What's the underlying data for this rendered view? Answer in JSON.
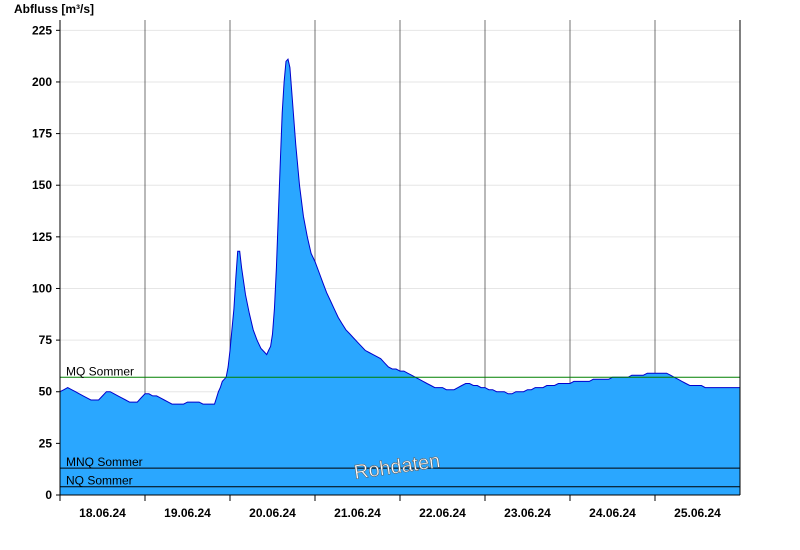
{
  "chart_data": {
    "type": "area",
    "ylabel": "Abfluss [m³/s]",
    "ylim": [
      0,
      230
    ],
    "yticks": [
      0,
      25,
      50,
      75,
      100,
      125,
      150,
      175,
      200,
      225
    ],
    "x_days": [
      "18.06.24",
      "19.06.24",
      "20.06.24",
      "21.06.24",
      "22.06.24",
      "23.06.24",
      "24.06.24",
      "25.06.24"
    ],
    "x_start": "17.06.24 21:00",
    "x_end": "25.06.24 21:00",
    "grid": true,
    "series": [
      {
        "values": [
          [
            0.0,
            50
          ],
          [
            0.1,
            51
          ],
          [
            0.2,
            52
          ],
          [
            0.3,
            51
          ],
          [
            0.4,
            50
          ],
          [
            0.5,
            49
          ],
          [
            0.6,
            48
          ],
          [
            0.7,
            47
          ],
          [
            0.8,
            46
          ],
          [
            0.9,
            46
          ],
          [
            1.0,
            46
          ],
          [
            1.1,
            48
          ],
          [
            1.2,
            50
          ],
          [
            1.3,
            50
          ],
          [
            1.4,
            49
          ],
          [
            1.5,
            48
          ],
          [
            1.6,
            47
          ],
          [
            1.7,
            46
          ],
          [
            1.8,
            45
          ],
          [
            1.9,
            45
          ],
          [
            2.0,
            45
          ],
          [
            2.1,
            47
          ],
          [
            2.2,
            49
          ],
          [
            2.3,
            49
          ],
          [
            2.4,
            48
          ],
          [
            2.5,
            48
          ],
          [
            2.6,
            47
          ],
          [
            2.7,
            46
          ],
          [
            2.8,
            45
          ],
          [
            2.9,
            44
          ],
          [
            3.0,
            44
          ],
          [
            3.1,
            44
          ],
          [
            3.2,
            44
          ],
          [
            3.3,
            45
          ],
          [
            3.4,
            45
          ],
          [
            3.5,
            45
          ],
          [
            3.6,
            45
          ],
          [
            3.7,
            44
          ],
          [
            3.8,
            44
          ],
          [
            3.9,
            44
          ],
          [
            4.0,
            44
          ],
          [
            4.05,
            47
          ],
          [
            4.1,
            50
          ],
          [
            4.15,
            52
          ],
          [
            4.2,
            55
          ],
          [
            4.25,
            56
          ],
          [
            4.3,
            57
          ],
          [
            4.35,
            62
          ],
          [
            4.4,
            70
          ],
          [
            4.45,
            80
          ],
          [
            4.5,
            90
          ],
          [
            4.55,
            105
          ],
          [
            4.6,
            118
          ],
          [
            4.65,
            118
          ],
          [
            4.7,
            110
          ],
          [
            4.8,
            97
          ],
          [
            4.9,
            88
          ],
          [
            5.0,
            80
          ],
          [
            5.1,
            75
          ],
          [
            5.2,
            71
          ],
          [
            5.3,
            69
          ],
          [
            5.35,
            68
          ],
          [
            5.4,
            70
          ],
          [
            5.45,
            72
          ],
          [
            5.5,
            78
          ],
          [
            5.55,
            90
          ],
          [
            5.6,
            110
          ],
          [
            5.65,
            135
          ],
          [
            5.7,
            160
          ],
          [
            5.75,
            185
          ],
          [
            5.8,
            200
          ],
          [
            5.85,
            210
          ],
          [
            5.9,
            211
          ],
          [
            5.95,
            207
          ],
          [
            6.0,
            195
          ],
          [
            6.1,
            170
          ],
          [
            6.2,
            150
          ],
          [
            6.3,
            135
          ],
          [
            6.4,
            125
          ],
          [
            6.5,
            117
          ],
          [
            6.6,
            113
          ],
          [
            6.7,
            108
          ],
          [
            6.8,
            103
          ],
          [
            6.9,
            98
          ],
          [
            7.0,
            94
          ],
          [
            7.1,
            90
          ],
          [
            7.2,
            86
          ],
          [
            7.3,
            83
          ],
          [
            7.4,
            80
          ],
          [
            7.5,
            78
          ],
          [
            7.6,
            76
          ],
          [
            7.7,
            74
          ],
          [
            7.8,
            72
          ],
          [
            7.9,
            70
          ],
          [
            8.0,
            69
          ],
          [
            8.1,
            68
          ],
          [
            8.2,
            67
          ],
          [
            8.3,
            66
          ],
          [
            8.4,
            64
          ],
          [
            8.5,
            62
          ],
          [
            8.6,
            61
          ],
          [
            8.7,
            61
          ],
          [
            8.8,
            60
          ],
          [
            8.9,
            60
          ],
          [
            9.0,
            59
          ],
          [
            9.1,
            58
          ],
          [
            9.2,
            57
          ],
          [
            9.3,
            56
          ],
          [
            9.4,
            55
          ],
          [
            9.5,
            54
          ],
          [
            9.6,
            53
          ],
          [
            9.7,
            52
          ],
          [
            9.8,
            52
          ],
          [
            9.9,
            52
          ],
          [
            10.0,
            51
          ],
          [
            10.1,
            51
          ],
          [
            10.2,
            51
          ],
          [
            10.3,
            52
          ],
          [
            10.4,
            53
          ],
          [
            10.5,
            54
          ],
          [
            10.6,
            54
          ],
          [
            10.7,
            53
          ],
          [
            10.8,
            53
          ],
          [
            10.9,
            52
          ],
          [
            11.0,
            52
          ],
          [
            11.1,
            51
          ],
          [
            11.2,
            51
          ],
          [
            11.3,
            50
          ],
          [
            11.4,
            50
          ],
          [
            11.5,
            50
          ],
          [
            11.6,
            49
          ],
          [
            11.7,
            49
          ],
          [
            11.8,
            50
          ],
          [
            11.9,
            50
          ],
          [
            12.0,
            50
          ],
          [
            12.1,
            51
          ],
          [
            12.2,
            51
          ],
          [
            12.3,
            52
          ],
          [
            12.4,
            52
          ],
          [
            12.5,
            52
          ],
          [
            12.6,
            53
          ],
          [
            12.7,
            53
          ],
          [
            12.8,
            53
          ],
          [
            12.9,
            54
          ],
          [
            13.0,
            54
          ],
          [
            13.1,
            54
          ],
          [
            13.2,
            54
          ],
          [
            13.3,
            55
          ],
          [
            13.4,
            55
          ],
          [
            13.5,
            55
          ],
          [
            13.6,
            55
          ],
          [
            13.7,
            55
          ],
          [
            13.8,
            56
          ],
          [
            13.9,
            56
          ],
          [
            14.0,
            56
          ],
          [
            14.1,
            56
          ],
          [
            14.2,
            56
          ],
          [
            14.3,
            57
          ],
          [
            14.4,
            57
          ],
          [
            14.5,
            57
          ],
          [
            14.6,
            57
          ],
          [
            14.7,
            57
          ],
          [
            14.8,
            58
          ],
          [
            14.9,
            58
          ],
          [
            15.0,
            58
          ],
          [
            15.1,
            58
          ],
          [
            15.2,
            59
          ],
          [
            15.3,
            59
          ],
          [
            15.4,
            59
          ],
          [
            15.5,
            59
          ],
          [
            15.6,
            59
          ],
          [
            15.7,
            59
          ],
          [
            15.8,
            58
          ],
          [
            15.9,
            57
          ],
          [
            16.0,
            56
          ],
          [
            16.1,
            55
          ],
          [
            16.2,
            54
          ],
          [
            16.3,
            53
          ],
          [
            16.4,
            53
          ],
          [
            16.5,
            53
          ],
          [
            16.6,
            53
          ],
          [
            16.7,
            52
          ],
          [
            16.8,
            52
          ],
          [
            16.9,
            52
          ],
          [
            17.0,
            52
          ],
          [
            17.1,
            52
          ],
          [
            17.2,
            52
          ],
          [
            17.3,
            52
          ],
          [
            17.4,
            52
          ],
          [
            17.5,
            52
          ],
          [
            17.6,
            52
          ]
        ]
      }
    ],
    "reference_lines": [
      {
        "label": "MQ Sommer",
        "value": 57,
        "color": "#008000"
      },
      {
        "label": "MNQ Sommer",
        "value": 13,
        "color": "#000000"
      },
      {
        "label": "NQ Sommer",
        "value": 4,
        "color": "#000000"
      }
    ],
    "watermark": "Rohdaten",
    "colors": {
      "area": "#2aa7ff",
      "line": "#0000cc"
    }
  }
}
